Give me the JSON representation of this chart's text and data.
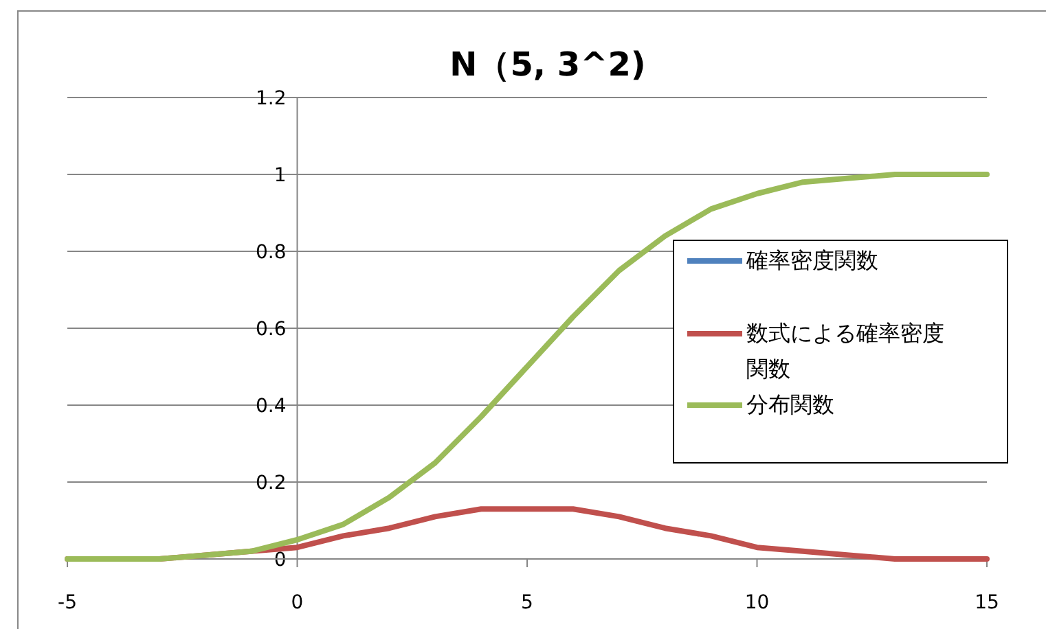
{
  "chart_data": {
    "type": "line",
    "title": "N（5, 3^2)",
    "x": [
      -5,
      -4,
      -3,
      -2,
      -1,
      0,
      1,
      2,
      3,
      4,
      5,
      6,
      7,
      8,
      9,
      10,
      11,
      12,
      13,
      14,
      15
    ],
    "series": [
      {
        "name": "確率密度関数",
        "color": "#4f81bd",
        "values": [
          null,
          null,
          null,
          null,
          null,
          null,
          null,
          null,
          null,
          null,
          null,
          null,
          null,
          null,
          null,
          null,
          null,
          null,
          null,
          null,
          null
        ]
      },
      {
        "name": "数式による確率密度関数",
        "color": "#c0504d",
        "values": [
          0.0,
          0.0,
          0.0,
          0.01,
          0.02,
          0.03,
          0.06,
          0.08,
          0.11,
          0.13,
          0.13,
          0.13,
          0.11,
          0.08,
          0.06,
          0.03,
          0.02,
          0.01,
          0.0,
          0.0,
          0.0
        ]
      },
      {
        "name": "分布関数",
        "color": "#9bbb59",
        "values": [
          0.0,
          0.0,
          0.0,
          0.01,
          0.02,
          0.05,
          0.09,
          0.16,
          0.25,
          0.37,
          0.5,
          0.63,
          0.75,
          0.84,
          0.91,
          0.95,
          0.98,
          0.99,
          1.0,
          1.0,
          1.0
        ]
      }
    ],
    "xlim": [
      -5,
      15
    ],
    "xticks": [
      -5,
      0,
      5,
      10,
      15
    ],
    "ylim": [
      0,
      1.2
    ],
    "yticks": [
      0,
      0.2,
      0.4,
      0.6,
      0.8,
      1,
      1.2
    ],
    "grid": "y",
    "legend": "right",
    "marker": "none",
    "line_style": "solid"
  }
}
